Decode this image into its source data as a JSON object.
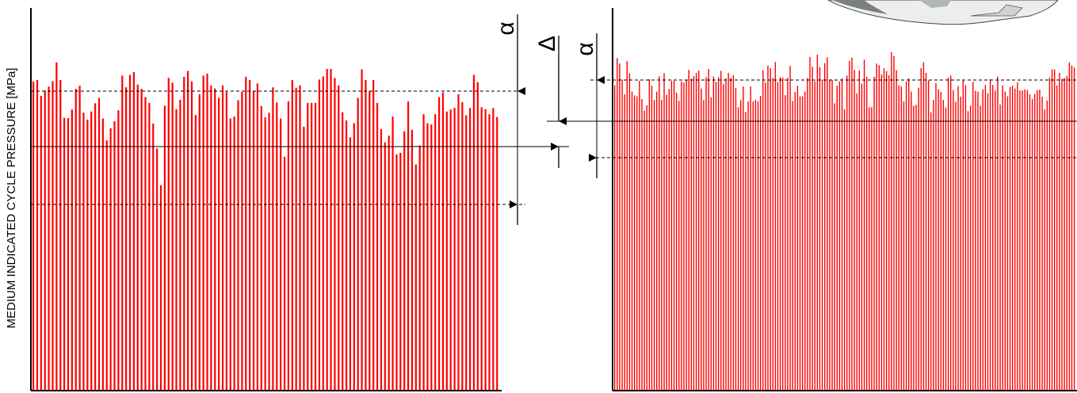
{
  "chart_data": [
    {
      "type": "bar",
      "ylabel": "MEDIUM INDICATED CYCLE PRESSURE [MPa]",
      "xlabel": "",
      "title": "",
      "ylim": [
        0,
        1
      ],
      "series_color": "#ff0000",
      "values": [
        0.791,
        0.795,
        0.754,
        0.768,
        0.778,
        0.792,
        0.84,
        0.795,
        0.698,
        0.697,
        0.719,
        0.772,
        0.78,
        0.711,
        0.693,
        0.714,
        0.735,
        0.749,
        0.696,
        0.64,
        0.671,
        0.689,
        0.717,
        0.806,
        0.776,
        0.808,
        0.815,
        0.783,
        0.772,
        0.751,
        0.736,
        0.683,
        0.619,
        0.525,
        0.729,
        0.8,
        0.788,
        0.72,
        0.744,
        0.803,
        0.818,
        0.791,
        0.705,
        0.758,
        0.806,
        0.811,
        0.781,
        0.773,
        0.749,
        0.781,
        0.764,
        0.696,
        0.701,
        0.743,
        0.764,
        0.803,
        0.795,
        0.767,
        0.786,
        0.728,
        0.699,
        0.711,
        0.776,
        0.737,
        0.696,
        0.598,
        0.74,
        0.795,
        0.775,
        0.781,
        0.675,
        0.736,
        0.736,
        0.736,
        0.796,
        0.804,
        0.823,
        0.823,
        0.8,
        0.781,
        0.712,
        0.691,
        0.648,
        0.684,
        0.749,
        0.822,
        0.795,
        0.766,
        0.795,
        0.736,
        0.669,
        0.635,
        0.652,
        0.701,
        0.604,
        0.608,
        0.663,
        0.74,
        0.667,
        0.578,
        0.627,
        0.707,
        0.684,
        0.681,
        0.707,
        0.751,
        0.763,
        0.714,
        0.719,
        0.723,
        0.758,
        0.738,
        0.704,
        0.723,
        0.808,
        0.789,
        0.725,
        0.72,
        0.707,
        0.723,
        0.7
      ]
    },
    {
      "type": "bar",
      "ylabel": "",
      "xlabel": "",
      "title": "",
      "ylim": [
        0,
        1
      ],
      "series_color": "#ff0000",
      "values": [
        0.781,
        0.851,
        0.837,
        0.796,
        0.758,
        0.843,
        0.812,
        0.765,
        0.755,
        0.753,
        0.793,
        0.746,
        0.716,
        0.73,
        0.797,
        0.78,
        0.744,
        0.765,
        0.804,
        0.744,
        0.812,
        0.757,
        0.772,
        0.793,
        0.793,
        0.762,
        0.741,
        0.791,
        0.788,
        0.795,
        0.821,
        0.798,
        0.805,
        0.813,
        0.819,
        0.773,
        0.743,
        0.802,
        0.823,
        0.75,
        0.804,
        0.79,
        0.802,
        0.818,
        0.784,
        0.799,
        0.813,
        0.8,
        0.807,
        0.774,
        0.725,
        0.743,
        0.778,
        0.713,
        0.74,
        0.778,
        0.74,
        0.744,
        0.74,
        0.754,
        0.82,
        0.788,
        0.832,
        0.825,
        0.8,
        0.841,
        0.79,
        0.802,
        0.801,
        0.756,
        0.801,
        0.831,
        0.741,
        0.764,
        0.78,
        0.753,
        0.753,
        0.765,
        0.8,
        0.854,
        0.829,
        0.791,
        0.86,
        0.828,
        0.796,
        0.838,
        0.853,
        0.796,
        0.795,
        0.735,
        0.78,
        0.791,
        0.798,
        0.72,
        0.806,
        0.844,
        0.852,
        0.821,
        0.76,
        0.819,
        0.785,
        0.847,
        0.803,
        0.725,
        0.725,
        0.803,
        0.837,
        0.833,
        0.809,
        0.825,
        0.818,
        0.807,
        0.866,
        0.856,
        0.82,
        0.781,
        0.778,
        0.74,
        0.791,
        0.799,
        0.765,
        0.729,
        0.731,
        0.775,
        0.825,
        0.84,
        0.813,
        0.794,
        0.712,
        0.744,
        0.787,
        0.771,
        0.764,
        0.744,
        0.724,
        0.801,
        0.806,
        0.769,
        0.739,
        0.779,
        0.752,
        0.793,
        0.782,
        0.715,
        0.729,
        0.79,
        0.767,
        0.765,
        0.729,
        0.771,
        0.782,
        0.761,
        0.797,
        0.782,
        0.768,
        0.804,
        0.732,
        0.781,
        0.765,
        0.753,
        0.777,
        0.78,
        0.773,
        0.789,
        0.768,
        0.768,
        0.771,
        0.769,
        0.758,
        0.746,
        0.759,
        0.769,
        0.77,
        0.752,
        0.719,
        0.742,
        0.801,
        0.822,
        0.822,
        0.781,
        0.813,
        0.798,
        0.8,
        0.805,
        0.84,
        0.832,
        0.827
      ]
    }
  ],
  "annotations": {
    "alpha_left": "α",
    "delta": "Δ",
    "alpha_right": "α"
  }
}
